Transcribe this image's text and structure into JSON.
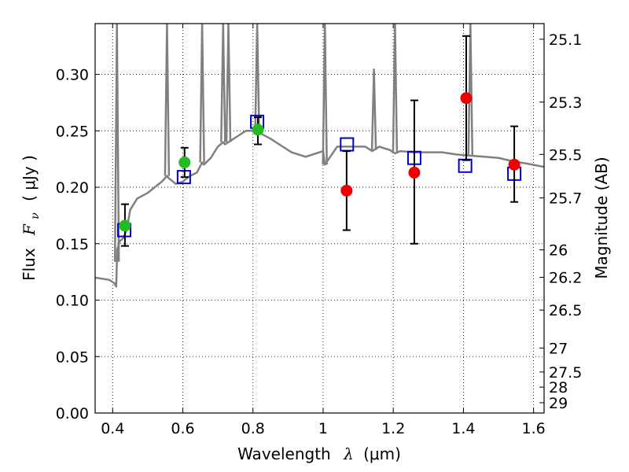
{
  "chart_data": {
    "type": "scatter",
    "xlabel_prefix": "Wavelength",
    "xlabel_symbol": "λ",
    "xlabel_unit": "(μm)",
    "ylabel_prefix": "Flux",
    "ylabel_symbol": "F",
    "ylabel_subscript": "ν",
    "ylabel_unit": "( μJy )",
    "y2label": "Magnitude (AB)",
    "xlim": [
      0.35,
      1.63
    ],
    "ylim": [
      0.0,
      0.345
    ],
    "grid": true,
    "x_ticks": [
      0.4,
      0.6,
      0.8,
      1.0,
      1.2,
      1.4,
      1.6
    ],
    "x_tick_labels": [
      "0.4",
      "0.6",
      "0.8",
      "1",
      "1.2",
      "1.4",
      "1.6"
    ],
    "y_ticks": [
      0.0,
      0.05,
      0.1,
      0.15,
      0.2,
      0.25,
      0.3
    ],
    "y_tick_labels": [
      "0.00",
      "0.05",
      "0.10",
      "0.15",
      "0.20",
      "0.25",
      "0.30"
    ],
    "mag_ticks": [
      25.1,
      25.3,
      25.5,
      25.7,
      26,
      26.2,
      26.5,
      27,
      27.5,
      28,
      29
    ],
    "mag_tick_labels": [
      "25.1",
      "25.3",
      "25.5",
      "25.7",
      "26",
      "26.2",
      "26.5",
      "27",
      "27.5",
      "28",
      "29"
    ],
    "colors": {
      "spectrum": "#808080",
      "green": "#22bb22",
      "red": "#ee0000",
      "square": "#0000cc",
      "errorbar": "#000000"
    },
    "spectrum": {
      "x": [
        0.35,
        0.37,
        0.39,
        0.405,
        0.41,
        0.413,
        0.416,
        0.42,
        0.43,
        0.44,
        0.45,
        0.47,
        0.5,
        0.52,
        0.54,
        0.555,
        0.56,
        0.58,
        0.6,
        0.62,
        0.64,
        0.655,
        0.66,
        0.68,
        0.7,
        0.715,
        0.72,
        0.74,
        0.76,
        0.78,
        0.8,
        0.812,
        0.82,
        0.85,
        0.88,
        0.91,
        0.95,
        1.0,
        1.005,
        1.04,
        1.08,
        1.12,
        1.14,
        1.16,
        1.19,
        1.205,
        1.22,
        1.26,
        1.3,
        1.34,
        1.38,
        1.42,
        1.46,
        1.5,
        1.54,
        1.58,
        1.63
      ],
      "y": [
        0.12,
        0.119,
        0.118,
        0.115,
        0.112,
        0.145,
        0.148,
        0.152,
        0.155,
        0.162,
        0.18,
        0.19,
        0.195,
        0.2,
        0.205,
        0.21,
        0.208,
        0.203,
        0.205,
        0.21,
        0.213,
        0.222,
        0.22,
        0.226,
        0.236,
        0.24,
        0.238,
        0.242,
        0.246,
        0.25,
        0.25,
        0.25,
        0.248,
        0.243,
        0.237,
        0.231,
        0.227,
        0.232,
        0.22,
        0.236,
        0.236,
        0.236,
        0.232,
        0.236,
        0.233,
        0.23,
        0.232,
        0.231,
        0.231,
        0.231,
        0.229,
        0.228,
        0.227,
        0.226,
        0.223,
        0.221,
        0.218
      ]
    },
    "spikes": [
      {
        "x": 0.412,
        "y": 0.345
      },
      {
        "x": 0.555,
        "y": 0.345
      },
      {
        "x": 0.655,
        "y": 0.345
      },
      {
        "x": 0.715,
        "y": 0.345
      },
      {
        "x": 0.73,
        "y": 0.345
      },
      {
        "x": 0.812,
        "y": 0.345
      },
      {
        "x": 1.005,
        "y": 0.345
      },
      {
        "x": 1.145,
        "y": 0.305
      },
      {
        "x": 1.205,
        "y": 0.345
      },
      {
        "x": 1.42,
        "y": 0.345
      }
    ],
    "green_points": [
      {
        "x": 0.435,
        "y": 0.166,
        "err": [
          0.148,
          0.185
        ]
      },
      {
        "x": 0.605,
        "y": 0.222,
        "err": [
          0.209,
          0.235
        ]
      },
      {
        "x": 0.814,
        "y": 0.251,
        "err": [
          0.238,
          0.262
        ]
      }
    ],
    "red_points": [
      {
        "x": 1.067,
        "y": 0.197,
        "err": [
          0.162,
          0.232
        ]
      },
      {
        "x": 1.26,
        "y": 0.213,
        "err": [
          0.15,
          0.277
        ]
      },
      {
        "x": 1.408,
        "y": 0.279,
        "err": [
          0.224,
          0.334
        ]
      },
      {
        "x": 1.545,
        "y": 0.22,
        "err": [
          0.187,
          0.254
        ]
      }
    ],
    "squares": [
      {
        "x": 0.433,
        "y": 0.162
      },
      {
        "x": 0.603,
        "y": 0.209
      },
      {
        "x": 0.812,
        "y": 0.258
      },
      {
        "x": 1.068,
        "y": 0.238
      },
      {
        "x": 1.26,
        "y": 0.226
      },
      {
        "x": 1.405,
        "y": 0.219
      },
      {
        "x": 1.545,
        "y": 0.212
      }
    ]
  }
}
